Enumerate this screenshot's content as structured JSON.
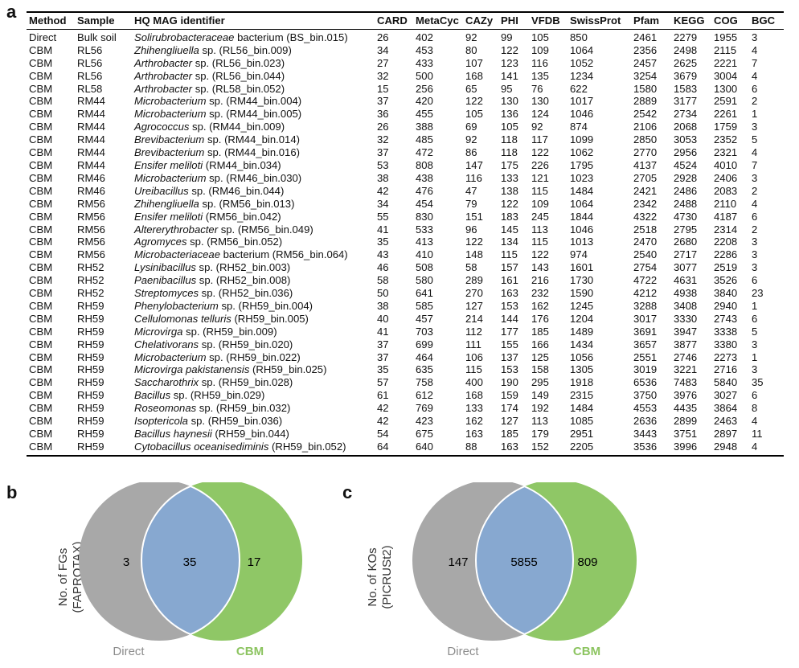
{
  "panels": {
    "a": "a",
    "b": "b",
    "c": "c"
  },
  "table": {
    "headers": [
      "Method",
      "Sample",
      "HQ MAG identifier",
      "CARD",
      "MetaCyc",
      "CAZy",
      "PHI",
      "VFDB",
      "SwissProt",
      "Pfam",
      "KEGG",
      "COG",
      "BGC"
    ],
    "rows": [
      {
        "method": "Direct",
        "sample": "Bulk soil",
        "taxon": "Solirubrobacteraceae",
        "suffix": " bacterium",
        "bin": " (BS_bin.015)",
        "vals": [
          "26",
          "402",
          "92",
          "99",
          "105",
          "850",
          "2461",
          "2279",
          "1955",
          "3"
        ]
      },
      {
        "method": "CBM",
        "sample": "RL56",
        "taxon": "Zhihengliuella",
        "suffix": " sp.",
        "bin": " (RL56_bin.009)",
        "vals": [
          "34",
          "453",
          "80",
          "122",
          "109",
          "1064",
          "2356",
          "2498",
          "2115",
          "4"
        ]
      },
      {
        "method": "CBM",
        "sample": "RL56",
        "taxon": "Arthrobacter",
        "suffix": " sp.",
        "bin": " (RL56_bin.023)",
        "vals": [
          "27",
          "433",
          "107",
          "123",
          "116",
          "1052",
          "2457",
          "2625",
          "2221",
          "7"
        ]
      },
      {
        "method": "CBM",
        "sample": "RL56",
        "taxon": "Arthrobacter",
        "suffix": " sp.",
        "bin": " (RL56_bin.044)",
        "vals": [
          "32",
          "500",
          "168",
          "141",
          "135",
          "1234",
          "3254",
          "3679",
          "3004",
          "4"
        ]
      },
      {
        "method": "CBM",
        "sample": "RL58",
        "taxon": "Arthrobacter",
        "suffix": " sp.",
        "bin": " (RL58_bin.052)",
        "vals": [
          "15",
          "256",
          "65",
          "95",
          "76",
          "622",
          "1580",
          "1583",
          "1300",
          "6"
        ]
      },
      {
        "method": "CBM",
        "sample": "RM44",
        "taxon": "Microbacterium",
        "suffix": " sp.",
        "bin": " (RM44_bin.004)",
        "vals": [
          "37",
          "420",
          "122",
          "130",
          "130",
          "1017",
          "2889",
          "3177",
          "2591",
          "2"
        ]
      },
      {
        "method": "CBM",
        "sample": "RM44",
        "taxon": "Microbacterium",
        "suffix": " sp.",
        "bin": " (RM44_bin.005)",
        "vals": [
          "36",
          "455",
          "105",
          "136",
          "124",
          "1046",
          "2542",
          "2734",
          "2261",
          "1"
        ]
      },
      {
        "method": "CBM",
        "sample": "RM44",
        "taxon": "Agrococcus",
        "suffix": " sp.",
        "bin": " (RM44_bin.009)",
        "vals": [
          "26",
          "388",
          "69",
          "105",
          "92",
          "874",
          "2106",
          "2068",
          "1759",
          "3"
        ]
      },
      {
        "method": "CBM",
        "sample": "RM44",
        "taxon": "Brevibacterium",
        "suffix": " sp.",
        "bin": " (RM44_bin.014)",
        "vals": [
          "32",
          "485",
          "92",
          "118",
          "117",
          "1099",
          "2850",
          "3053",
          "2352",
          "5"
        ]
      },
      {
        "method": "CBM",
        "sample": "RM44",
        "taxon": "Brevibacterium",
        "suffix": " sp.",
        "bin": " (RM44_bin.016)",
        "vals": [
          "37",
          "472",
          "86",
          "118",
          "122",
          "1062",
          "2770",
          "2956",
          "2321",
          "4"
        ]
      },
      {
        "method": "CBM",
        "sample": "RM44",
        "taxon": "Ensifer meliloti",
        "suffix": "",
        "bin": " (RM44_bin.034)",
        "vals": [
          "53",
          "808",
          "147",
          "175",
          "226",
          "1795",
          "4137",
          "4524",
          "4010",
          "7"
        ]
      },
      {
        "method": "CBM",
        "sample": "RM46",
        "taxon": "Microbacterium",
        "suffix": " sp.",
        "bin": " (RM46_bin.030)",
        "vals": [
          "38",
          "438",
          "116",
          "133",
          "121",
          "1023",
          "2705",
          "2928",
          "2406",
          "3"
        ]
      },
      {
        "method": "CBM",
        "sample": "RM46",
        "taxon": "Ureibacillus",
        "suffix": " sp.",
        "bin": " (RM46_bin.044)",
        "vals": [
          "42",
          "476",
          "47",
          "138",
          "115",
          "1484",
          "2421",
          "2486",
          "2083",
          "2"
        ]
      },
      {
        "method": "CBM",
        "sample": "RM56",
        "taxon": "Zhihengliuella",
        "suffix": " sp.",
        "bin": " (RM56_bin.013)",
        "vals": [
          "34",
          "454",
          "79",
          "122",
          "109",
          "1064",
          "2342",
          "2488",
          "2110",
          "4"
        ]
      },
      {
        "method": "CBM",
        "sample": "RM56",
        "taxon": "Ensifer meliloti",
        "suffix": "",
        "bin": " (RM56_bin.042)",
        "vals": [
          "55",
          "830",
          "151",
          "183",
          "245",
          "1844",
          "4322",
          "4730",
          "4187",
          "6"
        ]
      },
      {
        "method": "CBM",
        "sample": "RM56",
        "taxon": "Altererythrobacter",
        "suffix": " sp.",
        "bin": " (RM56_bin.049)",
        "vals": [
          "41",
          "533",
          "96",
          "145",
          "113",
          "1046",
          "2518",
          "2795",
          "2314",
          "2"
        ]
      },
      {
        "method": "CBM",
        "sample": "RM56",
        "taxon": "Agromyces",
        "suffix": " sp.",
        "bin": " (RM56_bin.052)",
        "vals": [
          "35",
          "413",
          "122",
          "134",
          "115",
          "1013",
          "2470",
          "2680",
          "2208",
          "3"
        ]
      },
      {
        "method": "CBM",
        "sample": "RM56",
        "taxon": "Microbacteriaceae",
        "suffix": " bacterium",
        "bin": " (RM56_bin.064)",
        "vals": [
          "43",
          "410",
          "148",
          "115",
          "122",
          "974",
          "2540",
          "2717",
          "2286",
          "3"
        ]
      },
      {
        "method": "CBM",
        "sample": "RH52",
        "taxon": "Lysinibacillus",
        "suffix": " sp.",
        "bin": " (RH52_bin.003)",
        "vals": [
          "46",
          "508",
          "58",
          "157",
          "143",
          "1601",
          "2754",
          "3077",
          "2519",
          "3"
        ]
      },
      {
        "method": "CBM",
        "sample": "RH52",
        "taxon": "Paenibacillus",
        "suffix": " sp.",
        "bin": " (RH52_bin.008)",
        "vals": [
          "58",
          "580",
          "289",
          "161",
          "216",
          "1730",
          "4722",
          "4631",
          "3526",
          "6"
        ]
      },
      {
        "method": "CBM",
        "sample": "RH52",
        "taxon": "Streptomyces",
        "suffix": " sp.",
        "bin": " (RH52_bin.036)",
        "vals": [
          "50",
          "641",
          "270",
          "163",
          "232",
          "1590",
          "4212",
          "4938",
          "3840",
          "23"
        ]
      },
      {
        "method": "CBM",
        "sample": "RH59",
        "taxon": "Phenylobacterium",
        "suffix": " sp.",
        "bin": " (RH59_bin.004)",
        "vals": [
          "38",
          "585",
          "127",
          "153",
          "162",
          "1245",
          "3288",
          "3408",
          "2940",
          "1"
        ]
      },
      {
        "method": "CBM",
        "sample": "RH59",
        "taxon": "Cellulomonas telluris",
        "suffix": "",
        "bin": " (RH59_bin.005)",
        "vals": [
          "40",
          "457",
          "214",
          "144",
          "176",
          "1204",
          "3017",
          "3330",
          "2743",
          "6"
        ]
      },
      {
        "method": "CBM",
        "sample": "RH59",
        "taxon": "Microvirga",
        "suffix": " sp.",
        "bin": " (RH59_bin.009)",
        "vals": [
          "41",
          "703",
          "112",
          "177",
          "185",
          "1489",
          "3691",
          "3947",
          "3338",
          "5"
        ]
      },
      {
        "method": "CBM",
        "sample": "RH59",
        "taxon": "Chelativorans",
        "suffix": " sp.",
        "bin": " (RH59_bin.020)",
        "vals": [
          "37",
          "699",
          "111",
          "155",
          "166",
          "1434",
          "3657",
          "3877",
          "3380",
          "3"
        ]
      },
      {
        "method": "CBM",
        "sample": "RH59",
        "taxon": "Microbacterium",
        "suffix": " sp.",
        "bin": " (RH59_bin.022)",
        "vals": [
          "37",
          "464",
          "106",
          "137",
          "125",
          "1056",
          "2551",
          "2746",
          "2273",
          "1"
        ]
      },
      {
        "method": "CBM",
        "sample": "RH59",
        "taxon": "Microvirga pakistanensis",
        "suffix": "",
        "bin": " (RH59_bin.025)",
        "vals": [
          "35",
          "635",
          "115",
          "153",
          "158",
          "1305",
          "3019",
          "3221",
          "2716",
          "3"
        ]
      },
      {
        "method": "CBM",
        "sample": "RH59",
        "taxon": "Saccharothrix",
        "suffix": " sp.",
        "bin": " (RH59_bin.028)",
        "vals": [
          "57",
          "758",
          "400",
          "190",
          "295",
          "1918",
          "6536",
          "7483",
          "5840",
          "35"
        ]
      },
      {
        "method": "CBM",
        "sample": "RH59",
        "taxon": "Bacillus",
        "suffix": " sp.",
        "bin": " (RH59_bin.029)",
        "vals": [
          "61",
          "612",
          "168",
          "159",
          "149",
          "2315",
          "3750",
          "3976",
          "3027",
          "6"
        ]
      },
      {
        "method": "CBM",
        "sample": "RH59",
        "taxon": "Roseomonas",
        "suffix": " sp.",
        "bin": " (RH59_bin.032)",
        "vals": [
          "42",
          "769",
          "133",
          "174",
          "192",
          "1484",
          "4553",
          "4435",
          "3864",
          "8"
        ]
      },
      {
        "method": "CBM",
        "sample": "RH59",
        "taxon": "Isoptericola",
        "suffix": " sp.",
        "bin": " (RH59_bin.036)",
        "vals": [
          "42",
          "423",
          "162",
          "127",
          "113",
          "1085",
          "2636",
          "2899",
          "2463",
          "4"
        ]
      },
      {
        "method": "CBM",
        "sample": "RH59",
        "taxon": "Bacillus haynesii",
        "suffix": "",
        "bin": " (RH59_bin.044)",
        "vals": [
          "54",
          "675",
          "163",
          "185",
          "179",
          "2951",
          "3443",
          "3751",
          "2897",
          "11"
        ]
      },
      {
        "method": "CBM",
        "sample": "RH59",
        "taxon": "Cytobacillus oceanisediminis",
        "suffix": "",
        "bin": " (RH59_bin.052)",
        "vals": [
          "64",
          "640",
          "88",
          "163",
          "152",
          "2205",
          "3536",
          "3996",
          "2948",
          "4"
        ]
      }
    ]
  },
  "venn_b": {
    "ylabel_1": "No. of FGs",
    "ylabel_2": "(FAPROTAX)",
    "left_only": "3",
    "overlap": "35",
    "right_only": "17",
    "left_label": "Direct",
    "right_label": "CBM"
  },
  "venn_c": {
    "ylabel_1": "No. of KOs",
    "ylabel_2": "(PICRUSt2)",
    "left_only": "147",
    "overlap": "5855",
    "right_only": "809",
    "left_label": "Direct",
    "right_label": "CBM"
  },
  "colors": {
    "direct": "#a8a8a8",
    "cbm": "#8fc766",
    "overlap": "#87a8d0",
    "direct_label": "#8c8c8c",
    "cbm_label": "#8cc460"
  }
}
